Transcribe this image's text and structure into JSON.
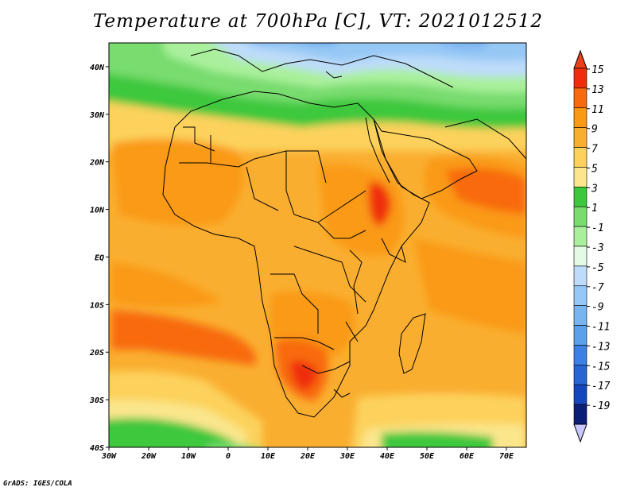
{
  "title": "Temperature at 700hPa [C], VT: 2021012512",
  "credit": "GrADS: IGES/COLA",
  "map": {
    "lon_range": [
      -30,
      75
    ],
    "lat_range": [
      -40,
      45
    ],
    "x_ticks": [
      {
        "lon": -30,
        "label": "30W"
      },
      {
        "lon": -20,
        "label": "20W"
      },
      {
        "lon": -10,
        "label": "10W"
      },
      {
        "lon": 0,
        "label": "0"
      },
      {
        "lon": 10,
        "label": "10E"
      },
      {
        "lon": 20,
        "label": "20E"
      },
      {
        "lon": 30,
        "label": "30E"
      },
      {
        "lon": 40,
        "label": "40E"
      },
      {
        "lon": 50,
        "label": "50E"
      },
      {
        "lon": 60,
        "label": "60E"
      },
      {
        "lon": 70,
        "label": "70E"
      }
    ],
    "y_ticks": [
      {
        "lat": 40,
        "label": "40N"
      },
      {
        "lat": 30,
        "label": "30N"
      },
      {
        "lat": 20,
        "label": "20N"
      },
      {
        "lat": 10,
        "label": "10N"
      },
      {
        "lat": 0,
        "label": "EQ"
      },
      {
        "lat": -10,
        "label": "10S"
      },
      {
        "lat": -20,
        "label": "20S"
      },
      {
        "lat": -30,
        "label": "30S"
      },
      {
        "lat": -40,
        "label": "40S"
      }
    ]
  },
  "colorbar": {
    "levels": [
      "15",
      "13",
      "11",
      "9",
      "7",
      "5",
      "3",
      "1",
      "-1",
      "-3",
      "-5",
      "-7",
      "-9",
      "-11",
      "-13",
      "-15",
      "-17",
      "-19"
    ],
    "top_color": "#e8401a",
    "bottom_color": "#c8c8ff",
    "colors": [
      "#f02d0a",
      "#f86a0e",
      "#fa9a14",
      "#faae30",
      "#fcd25c",
      "#fbe68c",
      "#3cc83c",
      "#78dc6e",
      "#aaf09c",
      "#e4fae4",
      "#bedcfa",
      "#96c8f5",
      "#78b4f0",
      "#5aa0eb",
      "#3c80e6",
      "#2864d2",
      "#1446be",
      "#0a1e78"
    ]
  }
}
